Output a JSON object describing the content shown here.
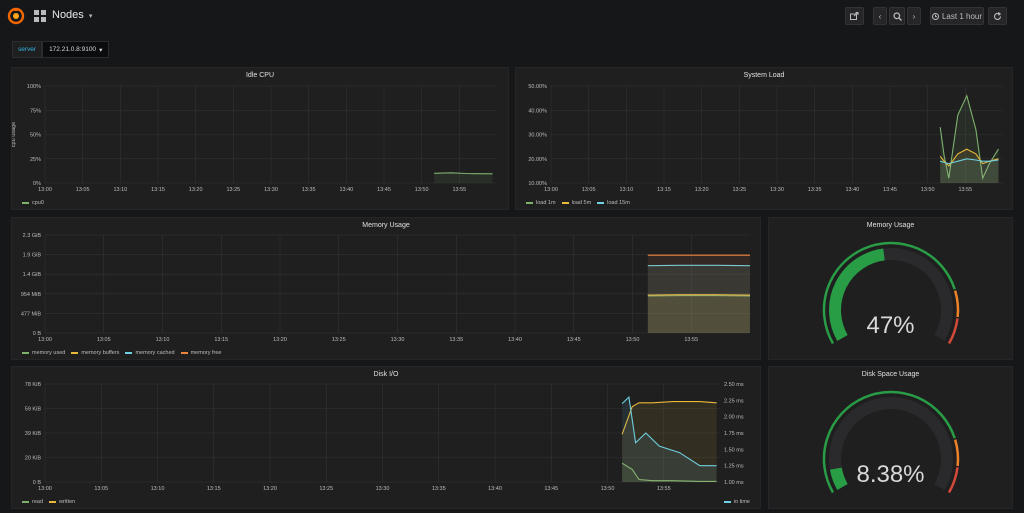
{
  "header": {
    "dashboard_title": "Nodes",
    "time_range_label": "Last 1 hour",
    "icons": [
      "grafana-logo-icon",
      "dashboard-grid-icon",
      "caret-down-icon",
      "share-icon",
      "chevron-left-icon",
      "zoom-out-icon",
      "chevron-right-icon",
      "clock-icon",
      "refresh-icon"
    ]
  },
  "variables": {
    "label": "server",
    "value": "172.21.0.8:9100"
  },
  "colors": {
    "green": "#7eb26d",
    "yellow": "#eab839",
    "blue": "#6ed0e0",
    "red": "#ef843c",
    "orange_red": "#e24d42",
    "gauge_green": "#299c46",
    "gauge_orange": "#ed8128",
    "gauge_red": "#d44a3a"
  },
  "panels": {
    "idle_cpu": {
      "title": "Idle CPU",
      "chart_data": {
        "type": "line",
        "ylabel": "cpu usage",
        "y_ticks": [
          "0%",
          "25%",
          "50%",
          "75%",
          "100%"
        ],
        "ylim": [
          0,
          100
        ],
        "x_ticks": [
          "13:00",
          "13:05",
          "13:10",
          "13:15",
          "13:20",
          "13:25",
          "13:30",
          "13:35",
          "13:40",
          "13:45",
          "13:50",
          "13:55"
        ],
        "series": [
          {
            "name": "cpu0",
            "color": "#7eb26d",
            "x": [
              13.861,
              13.9,
              13.93,
              13.95,
              13.99
            ],
            "values": [
              10,
              10.5,
              9.8,
              9.6,
              9.5
            ]
          }
        ]
      }
    },
    "system_load": {
      "title": "System Load",
      "chart_data": {
        "type": "line",
        "y_ticks": [
          "10.00%",
          "20.00%",
          "30.00%",
          "40.00%",
          "50.00%"
        ],
        "ylim": [
          10,
          50
        ],
        "x_ticks": [
          "13:00",
          "13:05",
          "13:10",
          "13:15",
          "13:20",
          "13:25",
          "13:30",
          "13:35",
          "13:40",
          "13:45",
          "13:50",
          "13:55"
        ],
        "series": [
          {
            "name": "load 1m",
            "color": "#7eb26d",
            "x": [
              13.861,
              13.87,
              13.88,
              13.9,
              13.92,
              13.94,
              13.955,
              13.97,
              13.99
            ],
            "values": [
              33,
              21,
              12,
              38,
              46,
              32,
              12,
              18,
              24
            ]
          },
          {
            "name": "load 5m",
            "color": "#eab839",
            "x": [
              13.861,
              13.87,
              13.88,
              13.9,
              13.92,
              13.94,
              13.955,
              13.97,
              13.99
            ],
            "values": [
              21,
              19,
              17,
              22,
              24,
              22,
              18,
              19,
              20
            ]
          },
          {
            "name": "load 15m",
            "color": "#6ed0e0",
            "x": [
              13.861,
              13.87,
              13.88,
              13.9,
              13.92,
              13.94,
              13.955,
              13.97,
              13.99
            ],
            "values": [
              19,
              18.5,
              18,
              19,
              20,
              19.5,
              19,
              19,
              19.5
            ]
          }
        ]
      }
    },
    "memory_usage_graph": {
      "title": "Memory Usage",
      "chart_data": {
        "type": "area",
        "y_ticks": [
          "0 B",
          "477 MiB",
          "954 MiB",
          "1.4 GiB",
          "1.9 GiB",
          "2.3 GiB"
        ],
        "ylim": [
          0,
          2.33
        ],
        "x_ticks": [
          "13:00",
          "13:05",
          "13:10",
          "13:15",
          "13:20",
          "13:25",
          "13:30",
          "13:35",
          "13:40",
          "13:45",
          "13:50",
          "13:55"
        ],
        "series": [
          {
            "name": "memory used",
            "color": "#7eb26d",
            "x": [
              13.855,
              13.9,
              13.95,
              14.0
            ],
            "values": [
              0.88,
              0.89,
              0.89,
              0.88
            ]
          },
          {
            "name": "memory buffers",
            "color": "#eab839",
            "x": [
              13.855,
              13.9,
              13.95,
              14.0
            ],
            "values": [
              0.9,
              0.91,
              0.91,
              0.9
            ]
          },
          {
            "name": "memory cached",
            "color": "#6ed0e0",
            "x": [
              13.855,
              13.9,
              13.95,
              14.0
            ],
            "values": [
              1.6,
              1.61,
              1.61,
              1.6
            ]
          },
          {
            "name": "memory free",
            "color": "#ef843c",
            "x": [
              13.855,
              13.9,
              13.95,
              14.0
            ],
            "values": [
              1.85,
              1.85,
              1.85,
              1.85
            ]
          }
        ]
      }
    },
    "memory_usage_gauge": {
      "title": "Memory Usage",
      "value_text": "47%",
      "percent": 47
    },
    "disk_io": {
      "title": "Disk I/O",
      "chart_data": {
        "type": "line",
        "y_ticks_left": [
          "0 B",
          "20 KiB",
          "39 KiB",
          "59 KiB",
          "78 KiB"
        ],
        "ylim_left": [
          0,
          78
        ],
        "y_ticks_right": [
          "1.00 ms",
          "1.25 ms",
          "1.50 ms",
          "1.75 ms",
          "2.00 ms",
          "2.25 ms",
          "2.50 ms"
        ],
        "ylim_right": [
          1.0,
          2.5
        ],
        "x_ticks": [
          "13:00",
          "13:05",
          "13:10",
          "13:15",
          "13:20",
          "13:25",
          "13:30",
          "13:35",
          "13:40",
          "13:45",
          "13:50",
          "13:55"
        ],
        "series": [
          {
            "name": "read",
            "color": "#7eb26d",
            "axis": "left",
            "x": [
              13.855,
              13.87,
              13.88,
              13.9,
              13.93,
              13.97,
              13.995
            ],
            "values": [
              15,
              10,
              2,
              1,
              1,
              0.5,
              0.5
            ]
          },
          {
            "name": "written",
            "color": "#eab839",
            "axis": "left",
            "x": [
              13.855,
              13.87,
              13.88,
              13.9,
              13.93,
              13.97,
              13.995
            ],
            "values": [
              38,
              60,
              63,
              63,
              64,
              64,
              63
            ]
          },
          {
            "name": "io time",
            "color": "#6ed0e0",
            "axis": "right",
            "x": [
              13.855,
              13.865,
              13.875,
              13.89,
              13.91,
              13.94,
              13.97,
              13.995
            ],
            "values": [
              2.2,
              2.3,
              1.6,
              1.75,
              1.55,
              1.45,
              1.25,
              1.25
            ]
          }
        ]
      }
    },
    "disk_space_gauge": {
      "title": "Disk Space Usage",
      "value_text": "8.38%",
      "percent": 8.38
    }
  }
}
